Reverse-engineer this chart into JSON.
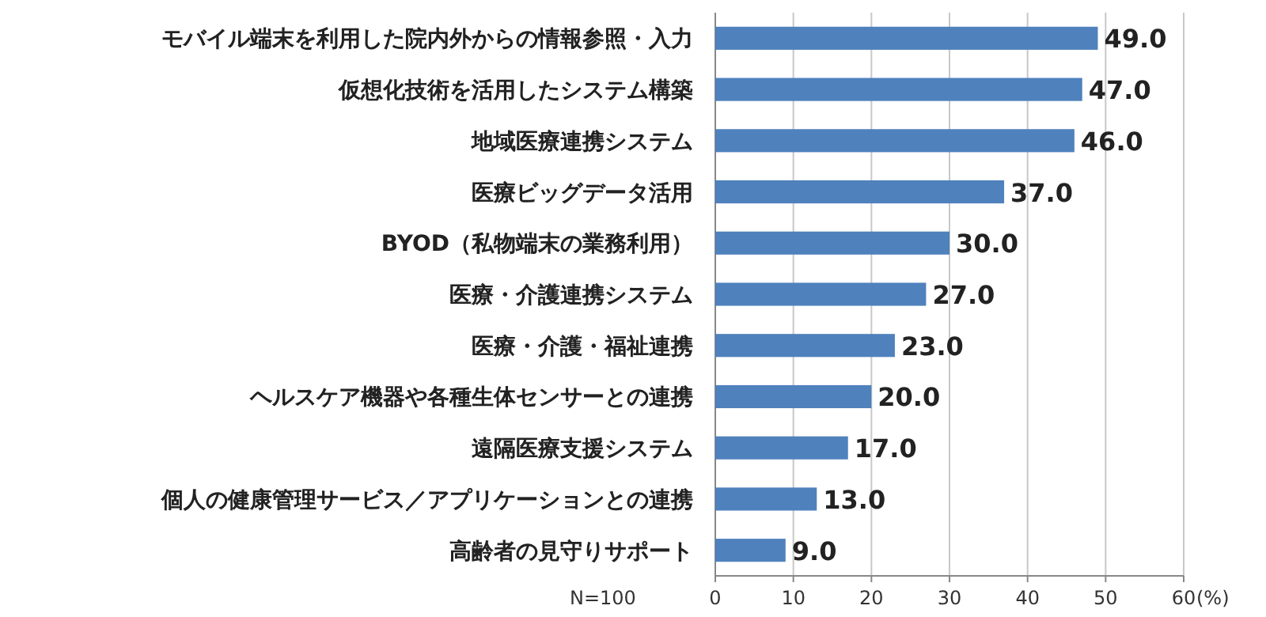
{
  "chart_data": {
    "type": "bar",
    "orientation": "horizontal",
    "categories": [
      "モバイル端末を利用した院内外からの情報参照・入力",
      "仮想化技術を活用したシステム構築",
      "地域医療連携システム",
      "医療ビッグデータ活用",
      "BYOD（私物端末の業務利用）",
      "医療・介護連携システム",
      "医療・介護・福祉連携",
      "ヘルスケア機器や各種生体センサーとの連携",
      "遠隔医療支援システム",
      "個人の健康管理サービス／アプリケーションとの連携",
      "高齢者の見守りサポート"
    ],
    "values": [
      49,
      47,
      46,
      37,
      30,
      27,
      23,
      20,
      17,
      13,
      9
    ],
    "value_labels": [
      "49.0",
      "47.0",
      "46.0",
      "37.0",
      "30.0",
      "27.0",
      "23.0",
      "20.0",
      "17.0",
      "13.0",
      "9.0"
    ],
    "color": "#4f81bd",
    "xlim": [
      0,
      60
    ],
    "xticks": [
      0,
      10,
      20,
      30,
      40,
      50,
      60
    ],
    "xlabel": "(%)",
    "grid": "x",
    "annotations": [
      "N=100"
    ]
  }
}
